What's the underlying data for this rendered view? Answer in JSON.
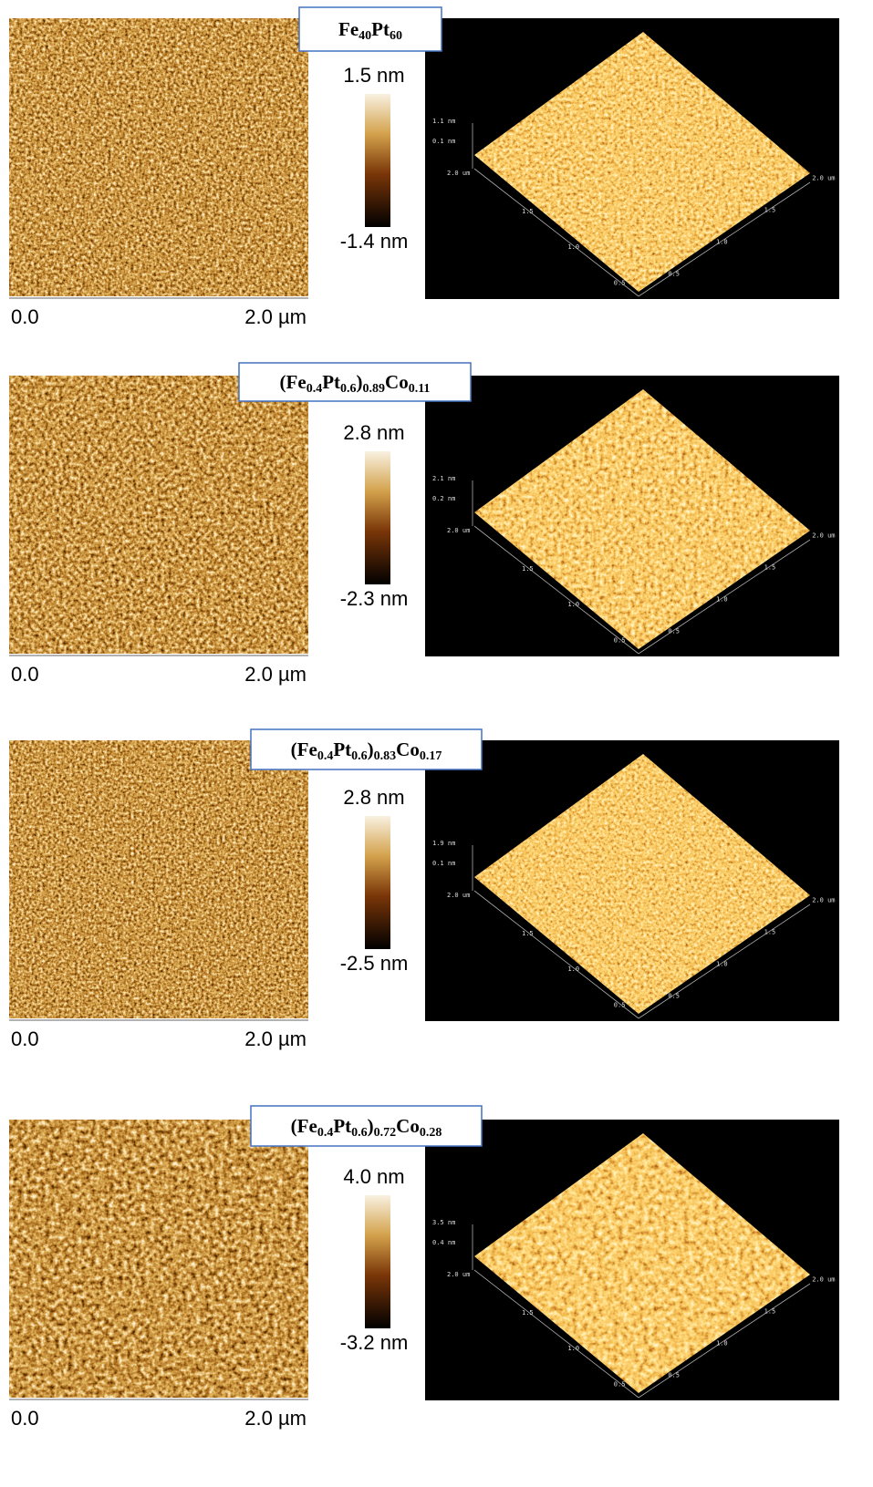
{
  "panels": [
    {
      "label_parts": [
        "Fe",
        "40",
        "Pt",
        "60"
      ],
      "colorbar": {
        "max": "1.5 nm",
        "min": "-1.4 nm"
      },
      "scale": {
        "start": "0.0",
        "end": "2.0 µm"
      },
      "plot3d": {
        "z_labels": [
          "1.1 nm",
          "0.1 nm"
        ],
        "left_axis": [
          "2.0 um",
          "1.5",
          "1.0",
          "0.5"
        ],
        "right_axis": [
          "0.5",
          "1.0",
          "1.5",
          "2.0 um"
        ]
      }
    },
    {
      "label_parts": [
        "(Fe",
        "0.4",
        "Pt",
        "0.6",
        ")",
        "0.89",
        "Co",
        "0.11"
      ],
      "colorbar": {
        "max": "2.8 nm",
        "min": "-2.3 nm"
      },
      "scale": {
        "start": "0.0",
        "end": "2.0 µm"
      },
      "plot3d": {
        "z_labels": [
          "2.1 nm",
          "0.2 nm"
        ],
        "left_axis": [
          "2.0 um",
          "1.5",
          "1.0",
          "0.5"
        ],
        "right_axis": [
          "0.5",
          "1.0",
          "1.5",
          "2.0 um"
        ]
      }
    },
    {
      "label_parts": [
        "(Fe",
        "0.4",
        "Pt",
        "0.6",
        ")",
        "0.83",
        "Co",
        "0.17"
      ],
      "colorbar": {
        "max": "2.8 nm",
        "min": "-2.5 nm"
      },
      "scale": {
        "start": "0.0",
        "end": "2.0 µm"
      },
      "plot3d": {
        "z_labels": [
          "1.9 nm",
          "0.1 nm"
        ],
        "left_axis": [
          "2.0 um",
          "1.5",
          "1.0",
          "0.5"
        ],
        "right_axis": [
          "0.5",
          "1.0",
          "1.5",
          "2.0 um"
        ]
      }
    },
    {
      "label_parts": [
        "(Fe",
        "0.4",
        "Pt",
        "0.6",
        ")",
        "0.72",
        "Co",
        "0.28"
      ],
      "colorbar": {
        "max": "4.0 nm",
        "min": "-3.2 nm"
      },
      "scale": {
        "start": "0.0",
        "end": "2.0 µm"
      },
      "plot3d": {
        "z_labels": [
          "3.5 nm",
          "0.4 nm"
        ],
        "left_axis": [
          "2.0 um",
          "1.5",
          "1.0",
          "0.5"
        ],
        "right_axis": [
          "0.5",
          "1.0",
          "1.5",
          "2.0 um"
        ]
      }
    }
  ]
}
